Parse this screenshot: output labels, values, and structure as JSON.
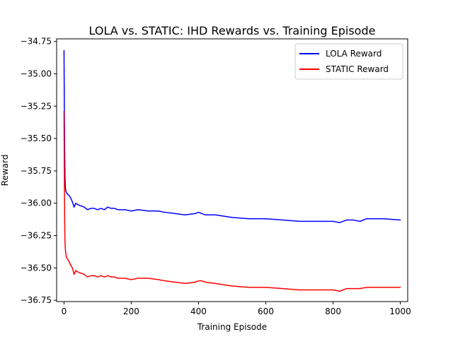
{
  "chart_data": {
    "type": "line",
    "title": "LOLA vs. STATIC: IHD Rewards vs. Training Episode",
    "xlabel": "Training Episode",
    "ylabel": "Reward",
    "xlim": [
      -22,
      1022
    ],
    "ylim": [
      -36.76,
      -34.73
    ],
    "xticks": [
      0,
      200,
      400,
      600,
      800,
      1000
    ],
    "xtick_labels": [
      "0",
      "200",
      "400",
      "600",
      "800",
      "1000"
    ],
    "yticks": [
      -34.75,
      -35.0,
      -35.25,
      -35.5,
      -35.75,
      -36.0,
      -36.25,
      -36.5,
      -36.75
    ],
    "ytick_labels": [
      "−34.75",
      "−35.00",
      "−35.25",
      "−35.50",
      "−35.75",
      "−36.00",
      "−36.25",
      "−36.50",
      "−36.75"
    ],
    "grid": false,
    "legend_position": "top-right",
    "series": [
      {
        "name": "LOLA Reward",
        "color": "#0000ff",
        "x": [
          0,
          1,
          2,
          3,
          4,
          6,
          8,
          10,
          15,
          20,
          25,
          30,
          35,
          40,
          50,
          60,
          70,
          80,
          90,
          100,
          110,
          120,
          130,
          140,
          150,
          160,
          180,
          200,
          220,
          250,
          280,
          300,
          330,
          360,
          390,
          400,
          410,
          420,
          450,
          500,
          550,
          600,
          650,
          700,
          750,
          800,
          820,
          840,
          860,
          880,
          900,
          950,
          1000
        ],
        "y": [
          -34.82,
          -35.3,
          -35.62,
          -35.8,
          -35.88,
          -35.91,
          -35.92,
          -35.93,
          -35.94,
          -35.96,
          -35.99,
          -36.03,
          -36.0,
          -36.01,
          -36.02,
          -36.03,
          -36.05,
          -36.04,
          -36.04,
          -36.05,
          -36.04,
          -36.05,
          -36.03,
          -36.04,
          -36.04,
          -36.05,
          -36.05,
          -36.06,
          -36.05,
          -36.06,
          -36.06,
          -36.07,
          -36.08,
          -36.09,
          -36.08,
          -36.07,
          -36.08,
          -36.09,
          -36.09,
          -36.11,
          -36.12,
          -36.12,
          -36.13,
          -36.14,
          -36.14,
          -36.14,
          -36.15,
          -36.13,
          -36.13,
          -36.14,
          -36.12,
          -36.12,
          -36.13
        ]
      },
      {
        "name": "STATIC Reward",
        "color": "#ff0000",
        "x": [
          0,
          1,
          2,
          3,
          4,
          6,
          8,
          10,
          15,
          20,
          25,
          30,
          35,
          40,
          50,
          60,
          70,
          80,
          90,
          100,
          110,
          120,
          130,
          140,
          150,
          160,
          180,
          200,
          220,
          250,
          280,
          300,
          330,
          360,
          390,
          400,
          410,
          420,
          450,
          500,
          550,
          600,
          650,
          700,
          750,
          800,
          820,
          840,
          860,
          880,
          900,
          950,
          1000
        ],
        "y": [
          -35.29,
          -35.8,
          -36.15,
          -36.3,
          -36.36,
          -36.4,
          -36.42,
          -36.43,
          -36.45,
          -36.48,
          -36.5,
          -36.55,
          -36.52,
          -36.53,
          -36.54,
          -36.55,
          -36.57,
          -36.56,
          -36.56,
          -36.57,
          -36.56,
          -36.57,
          -36.56,
          -36.57,
          -36.57,
          -36.58,
          -36.58,
          -36.59,
          -36.58,
          -36.58,
          -36.59,
          -36.6,
          -36.61,
          -36.62,
          -36.61,
          -36.6,
          -36.6,
          -36.61,
          -36.62,
          -36.64,
          -36.65,
          -36.65,
          -36.66,
          -36.67,
          -36.67,
          -36.67,
          -36.68,
          -36.66,
          -36.66,
          -36.66,
          -36.65,
          -36.65,
          -36.65
        ]
      }
    ]
  }
}
